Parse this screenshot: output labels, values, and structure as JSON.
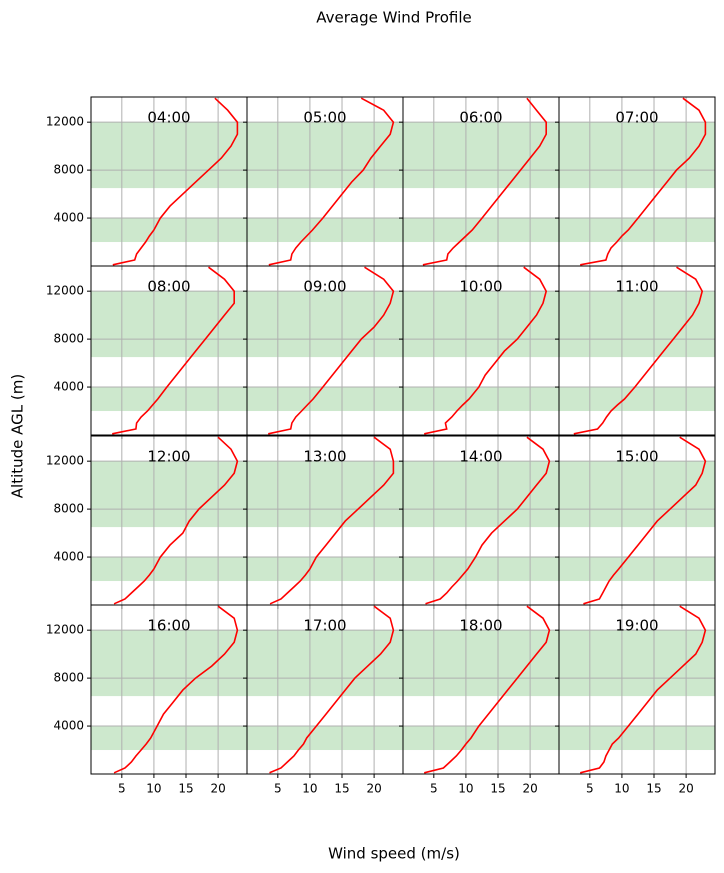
{
  "title": "Average Wind Profile",
  "xlabel": "Wind speed (m/s)",
  "ylabel": "Altitude AGL (m)",
  "axes": {
    "xlim": [
      0.2,
      24.5
    ],
    "ylim": [
      0,
      14100
    ],
    "xticks": [
      5,
      10,
      15,
      20
    ],
    "yticks": [
      4000,
      8000,
      12000
    ],
    "grid": true,
    "color": "#ff0000",
    "band_color": "#2ca02c",
    "bands": [
      [
        2000,
        4000
      ],
      [
        6500,
        12000
      ]
    ],
    "y": [
      100,
      500,
      1000,
      1500,
      2000,
      2500,
      3000,
      4000,
      5000,
      6000,
      7000,
      8000,
      9000,
      10000,
      11000,
      12000,
      13000,
      14000
    ]
  },
  "chart_data": [
    {
      "type": "line",
      "title": "04:00",
      "x": [
        3.6,
        7.0,
        7.3,
        8,
        8.7,
        9.3,
        10,
        11,
        12.5,
        14.5,
        16.5,
        18.5,
        20.5,
        22,
        23,
        23,
        21.5,
        19.5
      ]
    },
    {
      "type": "line",
      "title": "05:00",
      "x": [
        3.6,
        7.0,
        7.2,
        7.8,
        8.6,
        9.5,
        10.4,
        12,
        13.5,
        15,
        16.5,
        18.3,
        19.5,
        21,
        22.5,
        23,
        21.5,
        18
      ]
    },
    {
      "type": "line",
      "title": "06:00",
      "x": [
        3.3,
        7.0,
        7.2,
        8,
        9,
        10,
        11,
        12.5,
        14,
        15.5,
        17,
        18.5,
        20,
        21.5,
        22.5,
        22.5,
        21,
        19.5
      ]
    },
    {
      "type": "line",
      "title": "07:00",
      "x": [
        3.5,
        7.5,
        7.8,
        8.3,
        9.2,
        10,
        11,
        12.5,
        14,
        15.5,
        17,
        18.5,
        20.5,
        22,
        23,
        23,
        22,
        19.5
      ]
    },
    {
      "type": "line",
      "title": "08:00",
      "x": [
        3.5,
        7.2,
        7.3,
        8,
        9,
        9.8,
        10.6,
        12,
        13.5,
        15,
        16.5,
        18,
        19.5,
        21,
        22.5,
        22.5,
        21,
        18.5
      ]
    },
    {
      "type": "line",
      "title": "09:00",
      "x": [
        3.5,
        7.0,
        7.2,
        7.8,
        8.7,
        9.6,
        10.5,
        12,
        13.5,
        15,
        16.5,
        18,
        20,
        21.5,
        22.5,
        23,
        21.5,
        18.5
      ]
    },
    {
      "type": "line",
      "title": "10:00",
      "x": [
        3.5,
        7.0,
        6.8,
        7.8,
        8.6,
        9.5,
        10.5,
        12,
        13,
        14.5,
        16,
        18,
        19.5,
        21,
        22,
        22.5,
        21.5,
        19
      ]
    },
    {
      "type": "line",
      "title": "11:00",
      "x": [
        2.5,
        6.2,
        7,
        7.6,
        8.3,
        9.3,
        10.4,
        12,
        13.5,
        15,
        16.5,
        18,
        19.5,
        21,
        22,
        22.5,
        21.5,
        18.5
      ]
    },
    {
      "type": "line",
      "title": "12:00",
      "x": [
        3.8,
        5.5,
        6.5,
        7.5,
        8.5,
        9.3,
        10,
        11,
        12.5,
        14.5,
        15.5,
        17,
        19,
        21,
        22.5,
        23,
        22,
        20
      ]
    },
    {
      "type": "line",
      "title": "13:00",
      "x": [
        3.8,
        5.5,
        6.5,
        7.5,
        8.5,
        9.3,
        10,
        11,
        12.5,
        14,
        15.5,
        17.5,
        19.5,
        21.5,
        23,
        23,
        22.5,
        20
      ]
    },
    {
      "type": "line",
      "title": "14:00",
      "x": [
        3.7,
        6.0,
        7,
        7.8,
        8.7,
        9.5,
        10.3,
        11.5,
        12.5,
        14,
        16,
        18,
        19.5,
        21,
        22.5,
        23,
        22,
        19.5
      ]
    },
    {
      "type": "line",
      "title": "15:00",
      "x": [
        4.0,
        6.5,
        7,
        7.5,
        8,
        8.7,
        9.5,
        11,
        12.5,
        14,
        15.5,
        17.5,
        19.5,
        21.5,
        22.5,
        23,
        22,
        19
      ]
    },
    {
      "type": "line",
      "title": "16:00",
      "x": [
        3.8,
        5.5,
        6.5,
        7.2,
        8,
        8.8,
        9.5,
        10.5,
        11.5,
        13,
        14.5,
        16.5,
        19,
        21,
        22.5,
        23,
        22.5,
        20
      ]
    },
    {
      "type": "line",
      "title": "17:00",
      "x": [
        3.7,
        5.5,
        6.5,
        7.5,
        8.2,
        9,
        9.5,
        11,
        12.5,
        14,
        15.5,
        17,
        19,
        21,
        22.5,
        23,
        22.5,
        20
      ]
    },
    {
      "type": "line",
      "title": "18:00",
      "x": [
        3.5,
        6.5,
        7.5,
        8.5,
        9.3,
        10,
        10.8,
        12,
        13.5,
        15,
        16.5,
        18,
        19.5,
        21,
        22.5,
        23,
        22,
        19.5
      ]
    },
    {
      "type": "line",
      "title": "19:00",
      "x": [
        3.5,
        6.5,
        7.2,
        7.5,
        8,
        8.5,
        9.5,
        11,
        12.5,
        14,
        15.5,
        17.5,
        19.5,
        21.5,
        22.5,
        23,
        22,
        19
      ]
    }
  ]
}
